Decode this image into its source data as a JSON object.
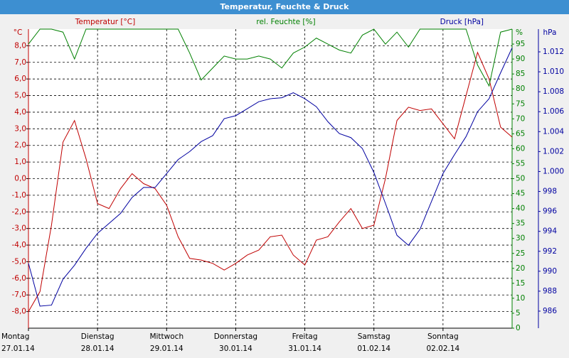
{
  "chart_data": {
    "type": "line",
    "title": "Temperatur, Feuchte & Druck",
    "grid": true,
    "x": [
      0,
      4,
      8,
      12,
      16,
      20,
      24,
      28,
      32,
      36,
      40,
      44,
      48,
      52,
      56,
      60,
      64,
      68,
      72,
      76,
      80,
      84,
      88,
      92,
      96,
      100,
      104,
      108,
      112,
      116,
      120,
      124,
      128,
      132,
      136,
      140,
      144,
      148,
      152,
      156,
      160,
      164,
      168
    ],
    "xlim": [
      0,
      168
    ],
    "xticks": [
      {
        "value": 0,
        "label": "Montag"
      },
      {
        "value": 24,
        "label": "Dienstag"
      },
      {
        "value": 48,
        "label": "Mittwoch"
      },
      {
        "value": 72,
        "label": "Donnerstag"
      },
      {
        "value": 96,
        "label": "Freitag"
      },
      {
        "value": 120,
        "label": "Samstag"
      },
      {
        "value": 144,
        "label": "Sonntag"
      }
    ],
    "xtick_dates": [
      "27.01.14",
      "28.01.14",
      "29.01.14",
      "30.01.14",
      "31.01.14",
      "01.02.14",
      "02.02.14"
    ],
    "ylim": [
      -9,
      9
    ],
    "yticks": [
      {
        "value": 8,
        "label": "8,0"
      },
      {
        "value": 7,
        "label": "7,0"
      },
      {
        "value": 6,
        "label": "6,0"
      },
      {
        "value": 5,
        "label": "5,0"
      },
      {
        "value": 4,
        "label": "4,0"
      },
      {
        "value": 3,
        "label": "3,0"
      },
      {
        "value": 2,
        "label": "2,0"
      },
      {
        "value": 1,
        "label": "1,0"
      },
      {
        "value": 0,
        "label": "0,0"
      },
      {
        "value": -1,
        "label": "-1,0"
      },
      {
        "value": -2,
        "label": "-2,0"
      },
      {
        "value": -3,
        "label": "-3,0"
      },
      {
        "value": -4,
        "label": "-4,0"
      },
      {
        "value": -5,
        "label": "-5,0"
      },
      {
        "value": -6,
        "label": "-6,0"
      },
      {
        "value": -7,
        "label": "-7,0"
      },
      {
        "value": -8,
        "label": "-8,0"
      }
    ],
    "y_unit": "°C",
    "y2lim": [
      0,
      100
    ],
    "y2ticks": [
      0,
      5,
      10,
      15,
      20,
      25,
      30,
      35,
      40,
      45,
      50,
      55,
      60,
      65,
      70,
      75,
      80,
      85,
      90,
      95
    ],
    "y2_unit": "%",
    "y3lim": [
      984.29,
      1014.28
    ],
    "y3ticks": [
      986,
      988,
      990,
      992,
      994,
      996,
      998,
      {
        "value": 1000,
        "label": "1.000"
      },
      {
        "value": 1002,
        "label": "1.002"
      },
      {
        "value": 1004,
        "label": "1.004"
      },
      {
        "value": 1006,
        "label": "1.006"
      },
      {
        "value": 1008,
        "label": "1.008"
      },
      {
        "value": 1010,
        "label": "1.010"
      },
      {
        "value": 1012,
        "label": "1.012"
      }
    ],
    "y3_unit": "hPa",
    "series": [
      {
        "name": "Temperatur [°C]",
        "color": "#c00000",
        "axis": "y",
        "values": [
          -8.0,
          -6.8,
          -2.8,
          2.2,
          3.5,
          1.2,
          -1.5,
          -1.8,
          -0.6,
          0.3,
          -0.3,
          -0.6,
          -1.6,
          -3.5,
          -4.8,
          -4.9,
          -5.1,
          -5.5,
          -5.1,
          -4.6,
          -4.3,
          -3.5,
          -3.4,
          -4.6,
          -5.2,
          -3.7,
          -3.5,
          -2.6,
          -1.8,
          -3.0,
          -2.8,
          0.0,
          3.5,
          4.3,
          4.1,
          4.2,
          3.3,
          2.4,
          5.0,
          7.6,
          6.0,
          3.1,
          2.5
        ]
      },
      {
        "name": "rel. Feuchte [%]",
        "color": "#008000",
        "axis": "y2",
        "values": [
          95,
          100,
          100,
          99,
          90,
          100,
          100,
          100,
          100,
          100,
          100,
          100,
          100,
          100,
          92,
          83,
          87,
          91,
          90,
          90,
          91,
          90,
          87,
          92,
          94,
          97,
          95,
          93,
          92,
          98,
          100,
          95,
          99,
          94,
          100,
          100,
          100,
          100,
          100,
          88,
          81,
          99,
          100
        ]
      },
      {
        "name": "Druck [hPa]",
        "color": "#0000a0",
        "axis": "y3",
        "values": [
          990.8,
          986.5,
          986.6,
          989.2,
          990.6,
          992.3,
          993.8,
          994.8,
          995.8,
          997.4,
          998.4,
          998.4,
          999.8,
          1001.2,
          1002.0,
          1003.0,
          1003.6,
          1005.3,
          1005.6,
          1006.3,
          1007.0,
          1007.3,
          1007.4,
          1007.9,
          1007.3,
          1006.5,
          1005.0,
          1003.8,
          1003.4,
          1002.3,
          999.9,
          996.8,
          993.6,
          992.6,
          994.2,
          997.0,
          999.8,
          1001.7,
          1003.5,
          1006.0,
          1007.3,
          1009.9,
          1012.4
        ]
      }
    ]
  }
}
